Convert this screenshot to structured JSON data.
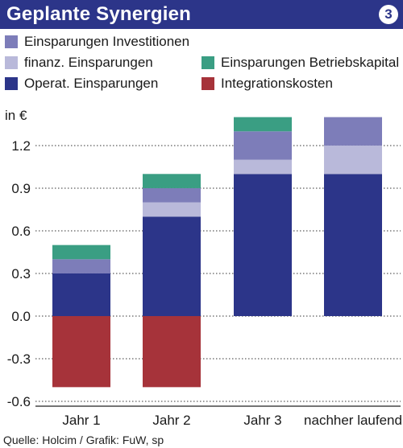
{
  "header": {
    "title": "Geplante Synergien",
    "badge": "3"
  },
  "legend": [
    {
      "label": "Einsparungen Investitionen",
      "color": "#7d7db9"
    },
    {
      "label": "finanz. Einsparungen",
      "color": "#b9b9da"
    },
    {
      "label": "Operat. Einsparungen",
      "color": "#2c3589"
    },
    {
      "label": "Einsparungen Betriebskapital",
      "color": "#3a9e83"
    },
    {
      "label": "Integrationskosten",
      "color": "#a6333a"
    }
  ],
  "unit_label": "in €",
  "source": "Quelle: Holcim / Grafik: FuW, sp",
  "chart_data": {
    "type": "bar",
    "stacked": true,
    "categories": [
      "Jahr 1",
      "Jahr 2",
      "Jahr 3",
      "nachher laufend"
    ],
    "series": [
      {
        "name": "Operat. Einsparungen",
        "color": "#2c3589",
        "values": [
          0.3,
          0.7,
          1.0,
          1.0
        ]
      },
      {
        "name": "finanz. Einsparungen",
        "color": "#b9b9da",
        "values": [
          0.0,
          0.1,
          0.1,
          0.2
        ]
      },
      {
        "name": "Einsparungen Investitionen",
        "color": "#7d7db9",
        "values": [
          0.1,
          0.1,
          0.2,
          0.2
        ]
      },
      {
        "name": "Einsparungen Betriebskapital",
        "color": "#3a9e83",
        "values": [
          0.1,
          0.1,
          0.1,
          0.0
        ]
      },
      {
        "name": "Integrationskosten",
        "color": "#a6333a",
        "values": [
          -0.5,
          -0.5,
          0.0,
          0.0
        ]
      }
    ],
    "yticks": [
      "1.2",
      "0.9",
      "0.6",
      "0.3",
      "0.0",
      "-0.3",
      "-0.6"
    ],
    "ylim": [
      -0.6,
      1.4
    ],
    "grid": true,
    "ylabel": "in €"
  }
}
